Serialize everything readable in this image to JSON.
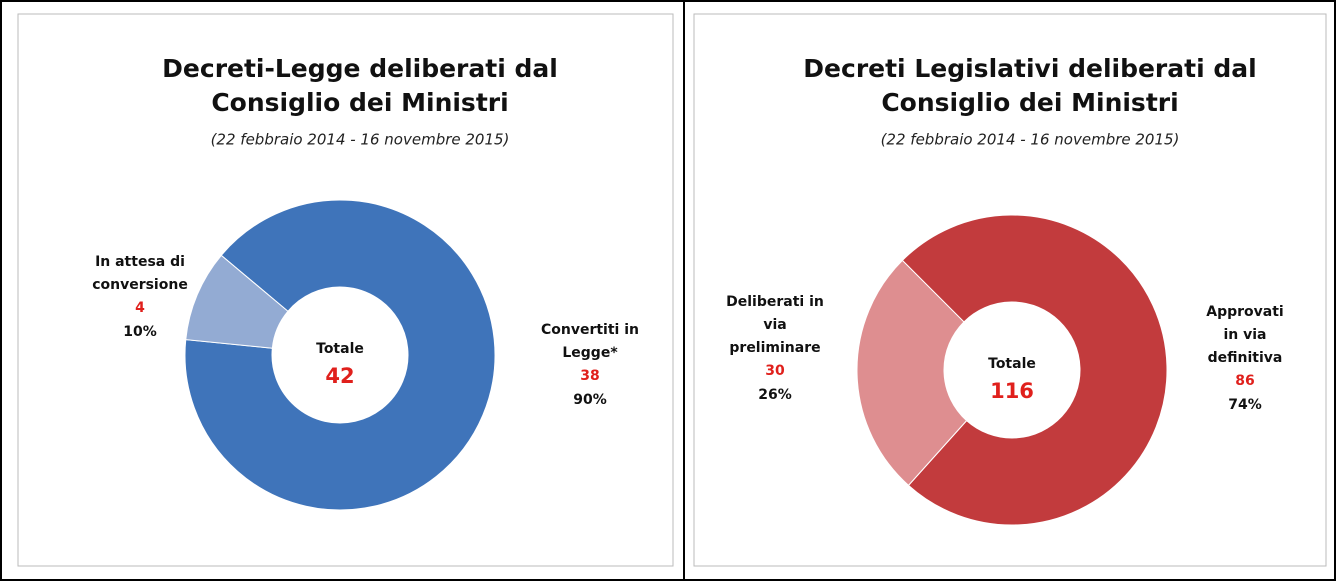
{
  "chart_data": [
    {
      "type": "donut",
      "title": [
        "Decreti-Legge deliberati dal",
        "Consiglio dei Ministri"
      ],
      "subtitle": "(22 febbraio 2014 - 16 novembre 2015)",
      "categories": [
        [
          "Convertiti in",
          "Legge*"
        ],
        [
          "In attesa di",
          "conversione"
        ]
      ],
      "values": [
        38,
        4
      ],
      "percent_labels": [
        "90%",
        "10%"
      ],
      "colors": [
        "#3f74ba",
        "#93abd3"
      ],
      "total_label": "Totale",
      "total": 42
    },
    {
      "type": "donut",
      "title": [
        "Decreti Legislativi deliberati dal",
        "Consiglio dei Ministri"
      ],
      "subtitle": "(22 febbraio 2014 - 16 novembre 2015)",
      "categories": [
        [
          "Approvati",
          "in via",
          "definitiva"
        ],
        [
          "Deliberati in",
          "via",
          "preliminare"
        ]
      ],
      "values": [
        86,
        30
      ],
      "percent_labels": [
        "74%",
        "26%"
      ],
      "colors": [
        "#c23b3d",
        "#de8e90"
      ],
      "total_label": "Totale",
      "total": 116
    }
  ]
}
